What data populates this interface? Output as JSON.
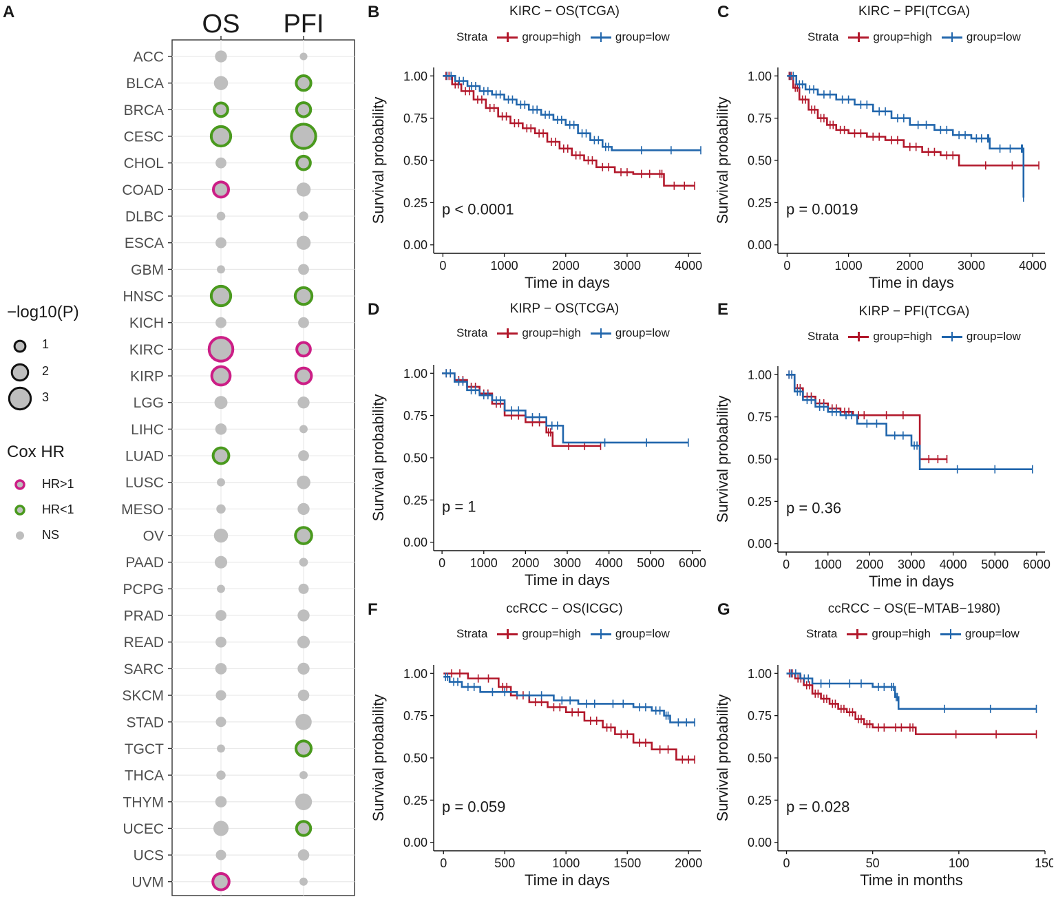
{
  "colors": {
    "high": "#B2182B",
    "low": "#2166AC",
    "hr_gt_1": "#CC1E86",
    "hr_lt_1": "#4A9A1E",
    "ns": "#BEBEBE"
  },
  "bubble_panel": {
    "label": "A",
    "columns": [
      "OS",
      "PFI"
    ],
    "legend": {
      "size_title": "−log10(P)",
      "size_items": [
        "1",
        "2",
        "3"
      ],
      "color_title": "Cox HR",
      "color_items": [
        "HR>1",
        "HR<1",
        "NS"
      ]
    }
  },
  "km_panels": [
    {
      "label": "B",
      "title": "KIRC − OS(TCGA)",
      "strata_title": "Strata",
      "strata": [
        "group=high",
        "group=low"
      ],
      "pvalue": "p < 0.0001",
      "xlabel": "Time in days",
      "ylabel": "Survival probability"
    },
    {
      "label": "C",
      "title": "KIRC − PFI(TCGA)",
      "strata_title": "Strata",
      "strata": [
        "group=high",
        "group=low"
      ],
      "pvalue": "p = 0.0019",
      "xlabel": "Time in days",
      "ylabel": "Survival probability"
    },
    {
      "label": "D",
      "title": "KIRP − OS(TCGA)",
      "strata_title": "Strata",
      "strata": [
        "group=high",
        "group=low"
      ],
      "pvalue": "p = 1",
      "xlabel": "Time in days",
      "ylabel": "Survival probability"
    },
    {
      "label": "E",
      "title": "KIRP − PFI(TCGA)",
      "strata_title": "Strata",
      "strata": [
        "group=high",
        "group=low"
      ],
      "pvalue": "p = 0.36",
      "xlabel": "Time in days",
      "ylabel": "Survival probability"
    },
    {
      "label": "F",
      "title": "ccRCC − OS(ICGC)",
      "strata_title": "Strata",
      "strata": [
        "group=high",
        "group=low"
      ],
      "pvalue": "p = 0.059",
      "xlabel": "Time in days",
      "ylabel": "Survival probability"
    },
    {
      "label": "G",
      "title": "ccRCC − OS(E−MTAB−1980)",
      "strata_title": "Strata",
      "strata": [
        "group=high",
        "group=low"
      ],
      "pvalue": "p = 0.028",
      "xlabel": "Time in months",
      "ylabel": "Survival probability"
    }
  ],
  "chart_data": [
    {
      "type": "scatter",
      "title": "A",
      "x": [
        "OS",
        "PFI"
      ],
      "categories": [
        "ACC",
        "BLCA",
        "BRCA",
        "CESC",
        "CHOL",
        "COAD",
        "DLBC",
        "ESCA",
        "GBM",
        "HNSC",
        "KICH",
        "KIRC",
        "KIRP",
        "LGG",
        "LIHC",
        "LUAD",
        "LUSC",
        "MESO",
        "OV",
        "PAAD",
        "PCPG",
        "PRAD",
        "READ",
        "SARC",
        "SKCM",
        "STAD",
        "TGCT",
        "THCA",
        "THYM",
        "UCEC",
        "UCS",
        "UVM"
      ],
      "series": [
        {
          "name": "OS",
          "neglog10p": [
            1.2,
            1.6,
            1.5,
            2.6,
            1.0,
            1.8,
            0.6,
            1.0,
            0.5,
            2.6,
            1.0,
            3.4,
            2.4,
            1.4,
            1.1,
            1.9,
            0.5,
            0.7,
            1.6,
            1.3,
            0.5,
            1.0,
            1.0,
            1.1,
            0.9,
            0.9,
            0.5,
            0.7,
            1.1,
            1.8,
            0.9,
            2.0
          ],
          "status": [
            "NS",
            "NS",
            "HR<1",
            "HR<1",
            "NS",
            "HR>1",
            "NS",
            "NS",
            "NS",
            "HR<1",
            "NS",
            "HR>1",
            "HR>1",
            "NS",
            "NS",
            "HR<1",
            "NS",
            "NS",
            "NS",
            "NS",
            "NS",
            "NS",
            "NS",
            "NS",
            "NS",
            "NS",
            "NS",
            "NS",
            "NS",
            "NS",
            "NS",
            "HR>1"
          ]
        },
        {
          "name": "PFI",
          "neglog10p": [
            0.4,
            1.7,
            1.6,
            3.5,
            1.5,
            1.6,
            0.7,
            1.6,
            1.0,
            2.1,
            1.0,
            1.5,
            1.9,
            1.2,
            0.5,
            1.0,
            1.5,
            1.2,
            2.0,
            0.6,
            0.9,
            1.2,
            1.3,
            1.2,
            1.1,
            2.0,
            1.8,
            0.5,
            2.1,
            1.6,
            1.1,
            0.5
          ],
          "status": [
            "NS",
            "HR<1",
            "HR<1",
            "HR<1",
            "HR<1",
            "NS",
            "NS",
            "NS",
            "NS",
            "HR<1",
            "NS",
            "HR>1",
            "HR>1",
            "NS",
            "NS",
            "NS",
            "NS",
            "NS",
            "HR<1",
            "NS",
            "NS",
            "NS",
            "NS",
            "NS",
            "NS",
            "NS",
            "HR<1",
            "NS",
            "NS",
            "HR<1",
            "NS",
            "NS"
          ]
        }
      ]
    },
    {
      "type": "line",
      "title": "KIRC − OS(TCGA)",
      "xlabel": "Time in days",
      "ylabel": "Survival probability",
      "xlim": [
        -150,
        4200
      ],
      "ylim": [
        -0.05,
        1.05
      ],
      "xticks": [
        0,
        1000,
        2000,
        3000,
        4000
      ],
      "yticks": [
        "0.00",
        "0.25",
        "0.50",
        "0.75",
        "1.00"
      ],
      "series": [
        {
          "name": "group=high",
          "x": [
            0,
            150,
            300,
            500,
            700,
            900,
            1100,
            1300,
            1500,
            1700,
            1900,
            2100,
            2300,
            2500,
            2800,
            3100,
            3500,
            3600,
            4100
          ],
          "y": [
            1.0,
            0.95,
            0.91,
            0.86,
            0.81,
            0.76,
            0.72,
            0.69,
            0.66,
            0.61,
            0.57,
            0.53,
            0.5,
            0.46,
            0.43,
            0.42,
            0.42,
            0.35,
            0.35
          ]
        },
        {
          "name": "group=low",
          "x": [
            0,
            200,
            400,
            600,
            800,
            1000,
            1200,
            1400,
            1600,
            1800,
            2000,
            2200,
            2400,
            2600,
            2750,
            4200
          ],
          "y": [
            1.0,
            0.97,
            0.94,
            0.91,
            0.89,
            0.86,
            0.83,
            0.8,
            0.77,
            0.74,
            0.71,
            0.66,
            0.62,
            0.58,
            0.56,
            0.56
          ]
        }
      ],
      "pvalue": "p < 0.0001"
    },
    {
      "type": "line",
      "title": "KIRC − PFI(TCGA)",
      "xlabel": "Time in days",
      "ylabel": "Survival probability",
      "xlim": [
        -150,
        4200
      ],
      "ylim": [
        -0.05,
        1.05
      ],
      "xticks": [
        0,
        1000,
        2000,
        3000,
        4000
      ],
      "yticks": [
        "0.00",
        "0.25",
        "0.50",
        "0.75",
        "1.00"
      ],
      "series": [
        {
          "name": "group=high",
          "x": [
            0,
            100,
            200,
            350,
            500,
            650,
            800,
            1000,
            1300,
            1600,
            1900,
            2200,
            2500,
            2800,
            4100
          ],
          "y": [
            1.0,
            0.93,
            0.86,
            0.8,
            0.75,
            0.71,
            0.68,
            0.66,
            0.64,
            0.62,
            0.58,
            0.55,
            0.53,
            0.47,
            0.47
          ]
        },
        {
          "name": "group=low",
          "x": [
            0,
            150,
            300,
            500,
            800,
            1100,
            1400,
            1700,
            2000,
            2400,
            2700,
            3000,
            3250,
            3300,
            3800,
            3850
          ],
          "y": [
            1.0,
            0.95,
            0.92,
            0.89,
            0.86,
            0.83,
            0.79,
            0.75,
            0.71,
            0.68,
            0.65,
            0.63,
            0.63,
            0.57,
            0.57,
            0.28
          ]
        }
      ],
      "pvalue": "p = 0.0019"
    },
    {
      "type": "line",
      "title": "KIRP − OS(TCGA)",
      "xlabel": "Time in days",
      "ylabel": "Survival probability",
      "xlim": [
        -200,
        6200
      ],
      "ylim": [
        -0.05,
        1.05
      ],
      "xticks": [
        0,
        1000,
        2000,
        3000,
        4000,
        5000,
        6000
      ],
      "yticks": [
        "0.00",
        "0.25",
        "0.50",
        "0.75",
        "1.00"
      ],
      "series": [
        {
          "name": "group=high",
          "x": [
            0,
            300,
            600,
            900,
            1200,
            1500,
            2000,
            2500,
            2650,
            3800
          ],
          "y": [
            1.0,
            0.96,
            0.92,
            0.88,
            0.82,
            0.75,
            0.71,
            0.65,
            0.57,
            0.57
          ]
        },
        {
          "name": "group=low",
          "x": [
            0,
            300,
            600,
            900,
            1200,
            1500,
            2000,
            2500,
            2900,
            5900
          ],
          "y": [
            1.0,
            0.95,
            0.9,
            0.87,
            0.84,
            0.78,
            0.74,
            0.69,
            0.59,
            0.59
          ]
        }
      ],
      "pvalue": "p = 1"
    },
    {
      "type": "line",
      "title": "KIRP − PFI(TCGA)",
      "xlabel": "Time in days",
      "ylabel": "Survival probability",
      "xlim": [
        -200,
        6200
      ],
      "ylim": [
        -0.05,
        1.05
      ],
      "xticks": [
        0,
        1000,
        2000,
        3000,
        4000,
        5000,
        6000
      ],
      "yticks": [
        "0.00",
        "0.25",
        "0.50",
        "0.75",
        "1.00"
      ],
      "series": [
        {
          "name": "group=high",
          "x": [
            0,
            200,
            400,
            700,
            1000,
            1300,
            1600,
            2000,
            3200,
            3850
          ],
          "y": [
            1.0,
            0.92,
            0.87,
            0.83,
            0.8,
            0.78,
            0.76,
            0.76,
            0.5,
            0.5
          ]
        },
        {
          "name": "group=low",
          "x": [
            0,
            200,
            400,
            700,
            1000,
            1300,
            1700,
            2400,
            3000,
            3200,
            5900
          ],
          "y": [
            1.0,
            0.9,
            0.85,
            0.81,
            0.78,
            0.76,
            0.71,
            0.64,
            0.58,
            0.44,
            0.44
          ]
        }
      ],
      "pvalue": "p = 0.36"
    },
    {
      "type": "line",
      "title": "ccRCC − OS(ICGC)",
      "xlabel": "Time in days",
      "ylabel": "Survival probability",
      "xlim": [
        -80,
        2100
      ],
      "ylim": [
        -0.05,
        1.05
      ],
      "xticks": [
        0,
        500,
        1000,
        1500,
        2000
      ],
      "yticks": [
        "0.00",
        "0.25",
        "0.50",
        "0.75",
        "1.00"
      ],
      "series": [
        {
          "name": "group=high",
          "x": [
            0,
            200,
            450,
            550,
            700,
            850,
            1000,
            1150,
            1300,
            1400,
            1550,
            1700,
            1900,
            2050
          ],
          "y": [
            1.0,
            0.97,
            0.92,
            0.87,
            0.83,
            0.8,
            0.77,
            0.72,
            0.68,
            0.64,
            0.59,
            0.55,
            0.49,
            0.49
          ]
        },
        {
          "name": "group=low",
          "x": [
            0,
            50,
            150,
            300,
            600,
            900,
            1100,
            1300,
            1550,
            1700,
            1800,
            1850,
            2050
          ],
          "y": [
            0.98,
            0.95,
            0.92,
            0.89,
            0.87,
            0.84,
            0.82,
            0.82,
            0.8,
            0.78,
            0.75,
            0.71,
            0.71
          ]
        }
      ],
      "pvalue": "p = 0.059"
    },
    {
      "type": "line",
      "title": "ccRCC − OS(E−MTAB−1980)",
      "xlabel": "Time in months",
      "ylabel": "Survival probability",
      "xlim": [
        -5,
        150
      ],
      "ylim": [
        -0.05,
        1.05
      ],
      "xticks": [
        0,
        50,
        100,
        150
      ],
      "yticks": [
        "0.00",
        "0.25",
        "0.50",
        "0.75",
        "1.00"
      ],
      "series": [
        {
          "name": "group=high",
          "x": [
            0,
            5,
            10,
            15,
            20,
            25,
            30,
            35,
            40,
            45,
            50,
            60,
            70,
            75,
            145
          ],
          "y": [
            1.0,
            0.97,
            0.93,
            0.88,
            0.85,
            0.82,
            0.79,
            0.77,
            0.73,
            0.7,
            0.68,
            0.68,
            0.68,
            0.64,
            0.64
          ]
        },
        {
          "name": "group=low",
          "x": [
            0,
            8,
            15,
            30,
            50,
            60,
            63,
            65,
            145
          ],
          "y": [
            1.0,
            0.97,
            0.94,
            0.94,
            0.92,
            0.92,
            0.86,
            0.79,
            0.79
          ]
        }
      ],
      "pvalue": "p = 0.028"
    }
  ]
}
